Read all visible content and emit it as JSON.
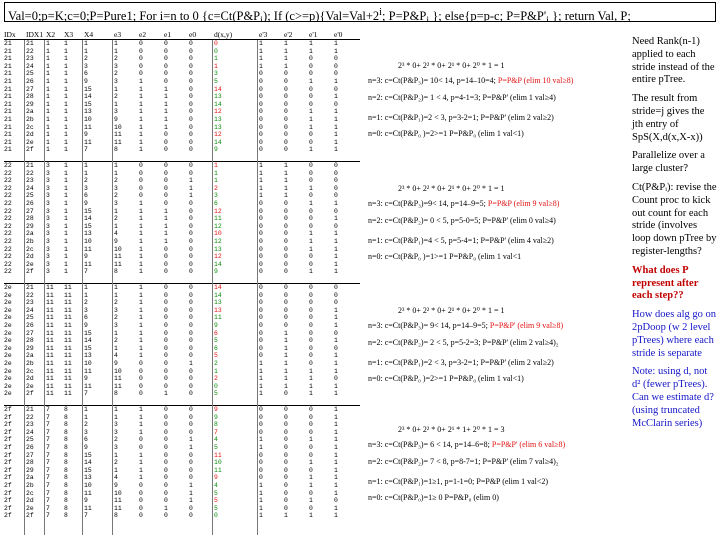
{
  "title": {
    "part1": "Val=0;p=K;c=0;P=Pure1; For i=n to 0 {c=Ct(P&P",
    "part2": "i",
    "part3": "); If (c>=p){Val=Val+2",
    "part4": "i",
    "part5": "; P=P&P",
    "part6": "i",
    "part7": " }; else{p=p-c; P=P&P'",
    "part8": "i",
    "part9": " }; return Val, P;"
  },
  "table": {
    "headers": [
      "IDx",
      "IDX1",
      "X2",
      "X3",
      "X4",
      "e3",
      "e2",
      "e1",
      "e0",
      "d(x,y)",
      "e'3",
      "e'2",
      "e'1",
      "e'0"
    ],
    "groups": [
      {
        "rows": [
          [
            "21",
            "21",
            "1",
            "1",
            "1",
            "1",
            "0",
            "0",
            "0",
            "0",
            "1",
            "1",
            "1",
            "1"
          ],
          [
            "21",
            "22",
            "1",
            "1",
            "1",
            "1",
            "0",
            "0",
            "0",
            "0",
            "1",
            "1",
            "1",
            "1"
          ],
          [
            "21",
            "23",
            "1",
            "1",
            "2",
            "2",
            "0",
            "0",
            "0",
            "1",
            "1",
            "1",
            "0",
            "0"
          ],
          [
            "21",
            "24",
            "1",
            "1",
            "3",
            "3",
            "0",
            "0",
            "0",
            "1",
            "1",
            "1",
            "0",
            "0"
          ],
          [
            "21",
            "25",
            "1",
            "1",
            "6",
            "2",
            "0",
            "0",
            "0",
            "3",
            "0",
            "0",
            "0",
            "0"
          ],
          [
            "21",
            "26",
            "1",
            "1",
            "9",
            "3",
            "1",
            "0",
            "0",
            "5",
            "0",
            "0",
            "1",
            "1"
          ],
          [
            "21",
            "27",
            "1",
            "1",
            "15",
            "1",
            "1",
            "1",
            "0",
            "14",
            "0",
            "0",
            "0",
            "0"
          ],
          [
            "21",
            "28",
            "1",
            "1",
            "14",
            "2",
            "1",
            "1",
            "0",
            "13",
            "0",
            "0",
            "0",
            "1"
          ],
          [
            "21",
            "29",
            "1",
            "1",
            "15",
            "1",
            "1",
            "1",
            "0",
            "14",
            "0",
            "0",
            "0",
            "0"
          ],
          [
            "21",
            "2a",
            "1",
            "1",
            "13",
            "3",
            "1",
            "1",
            "0",
            "12",
            "0",
            "0",
            "1",
            "1"
          ],
          [
            "21",
            "2b",
            "1",
            "1",
            "10",
            "9",
            "1",
            "1",
            "0",
            "13",
            "0",
            "0",
            "1",
            "1"
          ],
          [
            "21",
            "2c",
            "1",
            "1",
            "11",
            "10",
            "1",
            "1",
            "0",
            "13",
            "0",
            "0",
            "1",
            "1"
          ],
          [
            "21",
            "2d",
            "1",
            "1",
            "9",
            "11",
            "1",
            "0",
            "0",
            "12",
            "0",
            "0",
            "0",
            "1"
          ],
          [
            "21",
            "2e",
            "1",
            "1",
            "11",
            "11",
            "1",
            "0",
            "0",
            "14",
            "0",
            "0",
            "0",
            "1"
          ],
          [
            "21",
            "2f",
            "1",
            "1",
            "7",
            "8",
            "1",
            "0",
            "0",
            "9",
            "0",
            "0",
            "1",
            "1"
          ]
        ]
      },
      {
        "rows": [
          [
            "22",
            "21",
            "3",
            "1",
            "1",
            "1",
            "0",
            "0",
            "0",
            "1",
            "1",
            "1",
            "0",
            "0"
          ],
          [
            "22",
            "22",
            "3",
            "1",
            "1",
            "1",
            "0",
            "0",
            "0",
            "1",
            "1",
            "1",
            "0",
            "0"
          ],
          [
            "22",
            "23",
            "3",
            "1",
            "2",
            "2",
            "0",
            "0",
            "1",
            "1",
            "1",
            "1",
            "0",
            "0"
          ],
          [
            "22",
            "24",
            "3",
            "1",
            "3",
            "3",
            "0",
            "0",
            "1",
            "2",
            "1",
            "1",
            "1",
            "0"
          ],
          [
            "22",
            "25",
            "3",
            "1",
            "6",
            "2",
            "0",
            "0",
            "1",
            "3",
            "1",
            "1",
            "0",
            "0"
          ],
          [
            "22",
            "26",
            "3",
            "1",
            "9",
            "3",
            "1",
            "0",
            "0",
            "6",
            "0",
            "0",
            "1",
            "1"
          ],
          [
            "22",
            "27",
            "3",
            "1",
            "15",
            "1",
            "1",
            "1",
            "0",
            "12",
            "0",
            "0",
            "0",
            "0"
          ],
          [
            "22",
            "28",
            "3",
            "1",
            "14",
            "2",
            "1",
            "1",
            "0",
            "11",
            "0",
            "0",
            "0",
            "1"
          ],
          [
            "22",
            "29",
            "3",
            "1",
            "15",
            "1",
            "1",
            "1",
            "0",
            "12",
            "0",
            "0",
            "0",
            "0"
          ],
          [
            "22",
            "2a",
            "3",
            "1",
            "13",
            "4",
            "1",
            "1",
            "0",
            "10",
            "0",
            "0",
            "1",
            "1"
          ],
          [
            "22",
            "2b",
            "3",
            "1",
            "10",
            "9",
            "1",
            "1",
            "0",
            "12",
            "0",
            "0",
            "1",
            "1"
          ],
          [
            "22",
            "2c",
            "3",
            "1",
            "11",
            "10",
            "1",
            "0",
            "0",
            "13",
            "0",
            "0",
            "1",
            "1"
          ],
          [
            "22",
            "2d",
            "3",
            "1",
            "9",
            "11",
            "1",
            "0",
            "0",
            "12",
            "0",
            "0",
            "0",
            "1"
          ],
          [
            "22",
            "2e",
            "3",
            "1",
            "11",
            "11",
            "1",
            "0",
            "0",
            "14",
            "0",
            "0",
            "0",
            "1"
          ],
          [
            "22",
            "2f",
            "3",
            "1",
            "7",
            "8",
            "1",
            "0",
            "0",
            "9",
            "0",
            "0",
            "1",
            "1"
          ]
        ]
      },
      {
        "rows": [
          [
            "2e",
            "21",
            "11",
            "11",
            "1",
            "1",
            "1",
            "0",
            "0",
            "14",
            "0",
            "0",
            "0",
            "0"
          ],
          [
            "2e",
            "22",
            "11",
            "11",
            "1",
            "1",
            "1",
            "0",
            "0",
            "14",
            "0",
            "0",
            "0",
            "0"
          ],
          [
            "2e",
            "23",
            "11",
            "11",
            "2",
            "2",
            "1",
            "0",
            "0",
            "13",
            "0",
            "0",
            "0",
            "0"
          ],
          [
            "2e",
            "24",
            "11",
            "11",
            "3",
            "3",
            "1",
            "0",
            "0",
            "13",
            "0",
            "0",
            "0",
            "1"
          ],
          [
            "2e",
            "25",
            "11",
            "11",
            "6",
            "2",
            "1",
            "0",
            "0",
            "11",
            "0",
            "0",
            "0",
            "1"
          ],
          [
            "2e",
            "26",
            "11",
            "11",
            "9",
            "3",
            "1",
            "0",
            "0",
            "9",
            "0",
            "0",
            "0",
            "1"
          ],
          [
            "2e",
            "27",
            "11",
            "11",
            "15",
            "1",
            "1",
            "0",
            "0",
            "6",
            "0",
            "1",
            "0",
            "0"
          ],
          [
            "2e",
            "28",
            "11",
            "11",
            "14",
            "2",
            "1",
            "0",
            "0",
            "5",
            "0",
            "1",
            "0",
            "1"
          ],
          [
            "2e",
            "29",
            "11",
            "11",
            "15",
            "1",
            "1",
            "0",
            "0",
            "6",
            "0",
            "1",
            "0",
            "0"
          ],
          [
            "2e",
            "2a",
            "11",
            "11",
            "13",
            "4",
            "1",
            "0",
            "0",
            "5",
            "0",
            "1",
            "0",
            "1"
          ],
          [
            "2e",
            "2b",
            "11",
            "11",
            "10",
            "9",
            "0",
            "0",
            "1",
            "2",
            "1",
            "1",
            "0",
            "1"
          ],
          [
            "2e",
            "2c",
            "11",
            "11",
            "11",
            "10",
            "0",
            "0",
            "0",
            "1",
            "1",
            "1",
            "1",
            "1"
          ],
          [
            "2e",
            "2d",
            "11",
            "11",
            "9",
            "11",
            "0",
            "0",
            "0",
            "2",
            "1",
            "1",
            "1",
            "0"
          ],
          [
            "2e",
            "2e",
            "11",
            "11",
            "11",
            "11",
            "0",
            "0",
            "0",
            "0",
            "1",
            "1",
            "1",
            "1"
          ],
          [
            "2e",
            "2f",
            "11",
            "11",
            "7",
            "8",
            "0",
            "1",
            "0",
            "5",
            "1",
            "0",
            "1",
            "1"
          ]
        ]
      },
      {
        "rows": [
          [
            "2f",
            "21",
            "7",
            "8",
            "1",
            "1",
            "1",
            "0",
            "0",
            "9",
            "0",
            "0",
            "0",
            "1"
          ],
          [
            "2f",
            "22",
            "7",
            "8",
            "1",
            "1",
            "1",
            "0",
            "0",
            "9",
            "0",
            "0",
            "0",
            "1"
          ],
          [
            "2f",
            "23",
            "7",
            "8",
            "2",
            "3",
            "1",
            "0",
            "0",
            "8",
            "0",
            "0",
            "0",
            "1"
          ],
          [
            "2f",
            "24",
            "7",
            "8",
            "3",
            "3",
            "1",
            "0",
            "0",
            "7",
            "0",
            "0",
            "0",
            "1"
          ],
          [
            "2f",
            "25",
            "7",
            "8",
            "6",
            "2",
            "0",
            "0",
            "1",
            "4",
            "1",
            "0",
            "1",
            "1"
          ],
          [
            "2f",
            "26",
            "7",
            "8",
            "9",
            "3",
            "0",
            "0",
            "1",
            "5",
            "1",
            "0",
            "0",
            "1"
          ],
          [
            "2f",
            "27",
            "7",
            "8",
            "15",
            "1",
            "1",
            "0",
            "0",
            "11",
            "0",
            "0",
            "0",
            "1"
          ],
          [
            "2f",
            "28",
            "7",
            "8",
            "14",
            "2",
            "1",
            "0",
            "0",
            "10",
            "0",
            "0",
            "1",
            "1"
          ],
          [
            "2f",
            "29",
            "7",
            "8",
            "15",
            "1",
            "1",
            "0",
            "0",
            "11",
            "0",
            "0",
            "0",
            "1"
          ],
          [
            "2f",
            "2a",
            "7",
            "8",
            "13",
            "4",
            "1",
            "0",
            "0",
            "9",
            "0",
            "0",
            "1",
            "1"
          ],
          [
            "2f",
            "2b",
            "7",
            "8",
            "10",
            "9",
            "0",
            "0",
            "1",
            "4",
            "1",
            "0",
            "1",
            "1"
          ],
          [
            "2f",
            "2c",
            "7",
            "8",
            "11",
            "10",
            "0",
            "0",
            "1",
            "5",
            "1",
            "0",
            "0",
            "1"
          ],
          [
            "2f",
            "2d",
            "7",
            "8",
            "9",
            "11",
            "0",
            "0",
            "1",
            "5",
            "1",
            "0",
            "1",
            "0"
          ],
          [
            "2f",
            "2e",
            "7",
            "8",
            "11",
            "11",
            "0",
            "1",
            "0",
            "5",
            "1",
            "0",
            "0",
            "1"
          ],
          [
            "2f",
            "2f",
            "7",
            "8",
            "7",
            "8",
            "0",
            "0",
            "0",
            "0",
            "1",
            "1",
            "1",
            "1"
          ]
        ]
      }
    ]
  },
  "groups_text": [
    {
      "sum": "2³ * 0+ 2² * 0+ 2¹ * 0+ 2⁰ * 1 = 1",
      "n3": "n=3: c=Ct(P&P₃)= 10< 14, p=14–10=4; P=P&P (elim 10 val≥8)",
      "n2": "n=2: c=Ct(P&P₂)= 1 < 4, p=4-1=3; P=P&P' (elim 1 val≥4)",
      "n1": "n=1: c=Ct(P&P₁)=2 < 3, p=3-2=1; P=P&P' (elim 2 val≥2)",
      "n0": "n=0: c=Ct(P&P₀ )=2>=1        P=P&P₀ (elim 1 val<1)"
    },
    {
      "sum": "2³ * 0+ 2² * 0+ 2¹ * 0+ 2⁰ * 1 = 1",
      "n3": "n=3: c=Ct(P&P₃)=9< 14, p=14–9=5; P=P&P (elim 9 val≥8)",
      "n2": "n=2: c=Ct(P&P₂)= 0 < 5, p=5-0=5; P=P&P' (elim 0 val≥4)",
      "n1": "n=1: c=Ct(P&P₁)=4 < 5, p=5-4=1; P=P&P' (elim 4 val≥2)",
      "n0": "n=0: c=Ct(P&P₀ )=1>=1        P=P&P₀ (elim 1 val<1"
    },
    {
      "sum": "2³ * 0+ 2² * 0+ 2¹ * 0+ 2⁰ * 1 = 1",
      "n3": "n=3: c=Ct(P&P₃)= 9< 14, p=14–9=5; P=P&P' (elim 9 val≥8)",
      "n2": "n=2: c=Ct(P&P₂)= 2 < 5, p=5-2=3; P=P&P' (elim 2 val≥4)₂",
      "n1": "n=1: c=Ct(P&P₁)=2 < 3, p=3-2=1; P=P&P' (elim 2 val≥2)",
      "n0": "n=0: c=Ct(P&P₀ )=2>=1        P=P&P₀ (elim 1 val<1)"
    },
    {
      "sum": "2³ * 0+ 2² * 0+ 2¹ * 1+ 2⁰ * 1 = 3",
      "n3": "n=3: c=Ct(P&P₃)= 6 < 14, p=14–6=8; P=P&P' (elim 6 val≥8)",
      "n2": "n=2: c=Ct(P&P₂)= 7 < 8, p=8-7=1; P=P&P' (elim 7 val≥4)₂",
      "n1": "n=1: c=Ct(P&P₁)=1≥1, p=1-1=0; P=P&P (elim 1 val<2)",
      "n0": "n=0: c=Ct(P&P₀)=1≥ 0        P=P&P₀ (elim 0)"
    }
  ],
  "notes": [
    {
      "text": "Need Rank(n-1) applied to each stride instead of the entire pTree.",
      "style": "mixed1"
    },
    {
      "text": "The result from stride=j gives the jth entry of SpS(X,d(x,X-x))",
      "style": "black"
    },
    {
      "text": "Parallelize over a large cluster?",
      "style": "black"
    },
    {
      "text": "Ct(P&Pᵢ): revise the Count proc to kick out count for each stride (involves loop down pTree by register-lengths?",
      "style": "black"
    },
    {
      "text": "What does P represent after each step??",
      "style": "red"
    },
    {
      "text": "How does alg go on 2pDoop (w 2 level pTrees) where each stride is separate",
      "style": "blue"
    },
    {
      "text": "Note: using d, not d² (fewer pTrees). Can we estimate d? (using truncated McClarin series)",
      "style": "blue"
    }
  ],
  "colors": {
    "red": "#e01010",
    "green": "#0a8a0a",
    "blue": "#1515c8"
  }
}
